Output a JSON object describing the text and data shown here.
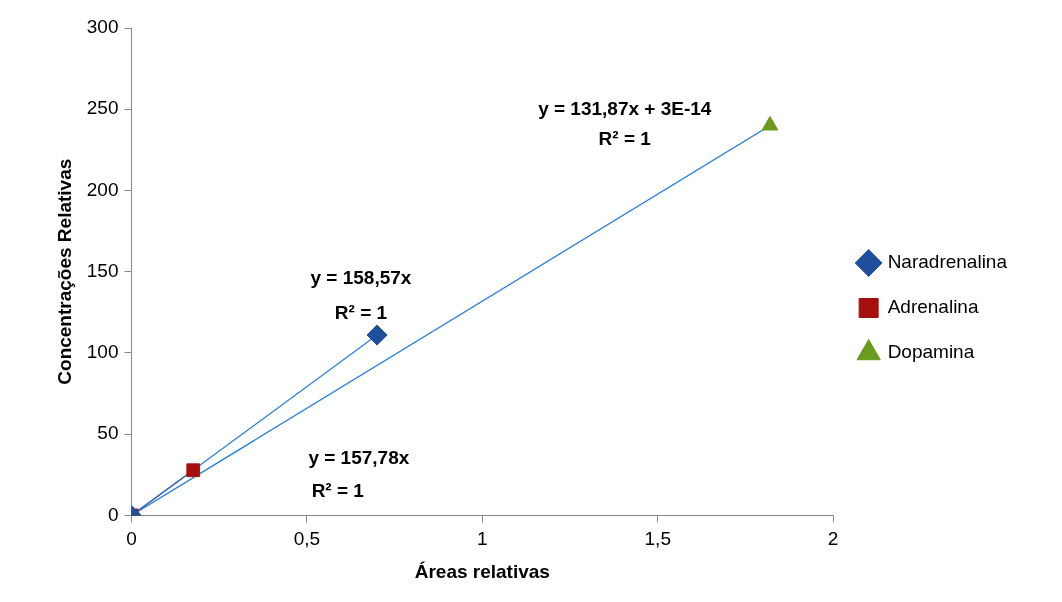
{
  "chart_data": {
    "type": "scatter",
    "xlabel": "Áreas relativas",
    "ylabel": "Concentrações Relativas",
    "xlim": [
      0,
      2
    ],
    "xticks": [
      0,
      {
        "value": 0.5,
        "label": "0,5"
      },
      1,
      {
        "value": 1.5,
        "label": "1,5"
      },
      2
    ],
    "ylim": [
      0,
      300
    ],
    "yticks": [
      0,
      50,
      100,
      150,
      200,
      250,
      300
    ],
    "grid": false,
    "legend": "right",
    "series": [
      {
        "name": "Naradrenalina",
        "color": "#1f4e9c",
        "marker": "diamond",
        "x": [
          0,
          0.7
        ],
        "values": [
          0,
          111
        ]
      },
      {
        "name": "Adrenalina",
        "color": "#a50f0f",
        "marker": "square",
        "x": [
          0,
          0.176
        ],
        "values": [
          0,
          27.8
        ]
      },
      {
        "name": "Dopamina",
        "color": "#6a9a1f",
        "marker": "triangle",
        "x": [
          0,
          1.82
        ],
        "values": [
          0,
          240
        ]
      },
      {
        "type": "line",
        "color": "#2a7fd4",
        "marker": "none",
        "x": [
          0,
          0.7
        ],
        "values": [
          0,
          111
        ]
      },
      {
        "type": "line",
        "color": "#8b1a1a",
        "marker": "none",
        "x": [
          0,
          0.176
        ],
        "values": [
          0,
          27.8
        ]
      },
      {
        "type": "line",
        "color": "#2a7fd4",
        "marker": "none",
        "x": [
          0,
          1.82
        ],
        "values": [
          0,
          240
        ]
      }
    ],
    "annotations": [
      "y = 158,57x",
      "R² = 1",
      "y = 157,78x",
      "R² = 1",
      "y = 131,87x + 3E-14",
      "R² = 1"
    ]
  }
}
